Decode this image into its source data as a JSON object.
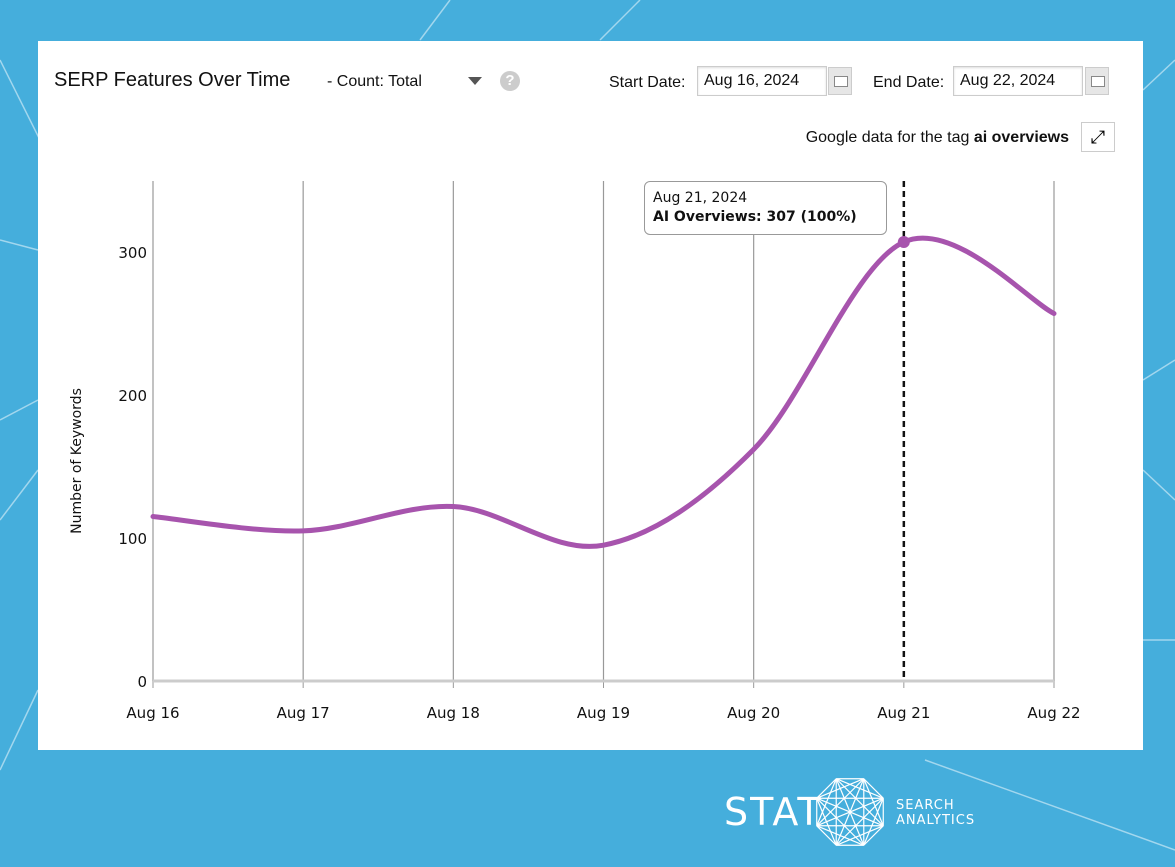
{
  "header": {
    "title": "SERP Features Over Time",
    "count_label": "- Count: Total",
    "help_icon": "question-circle-icon",
    "start_label": "Start Date:",
    "start_value": "Aug 16, 2024",
    "end_label": "End Date:",
    "end_value": "Aug 22, 2024",
    "tag_prefix": "Google data for the tag ",
    "tag_name": "ai overviews"
  },
  "tooltip": {
    "date": "Aug 21, 2024",
    "text": "AI Overviews: 307 (100%)"
  },
  "logo": {
    "brand": "STAT",
    "line1": "SEARCH",
    "line2": "ANALYTICS"
  },
  "colors": {
    "background": "#45aedc",
    "series": "#a754ad"
  },
  "chart_data": {
    "type": "line",
    "title": "",
    "xlabel": "",
    "ylabel": "Number of Keywords",
    "categories": [
      "Aug 16",
      "Aug 17",
      "Aug 18",
      "Aug 19",
      "Aug 20",
      "Aug 21",
      "Aug 22"
    ],
    "series": [
      {
        "name": "AI Overviews",
        "values": [
          115,
          105,
          122,
          95,
          162,
          307,
          257
        ]
      }
    ],
    "yticks": [
      0,
      100,
      200,
      300
    ],
    "ylim": [
      0,
      350
    ],
    "grid": "vertical",
    "highlight": "Aug 21",
    "smooth": true
  }
}
